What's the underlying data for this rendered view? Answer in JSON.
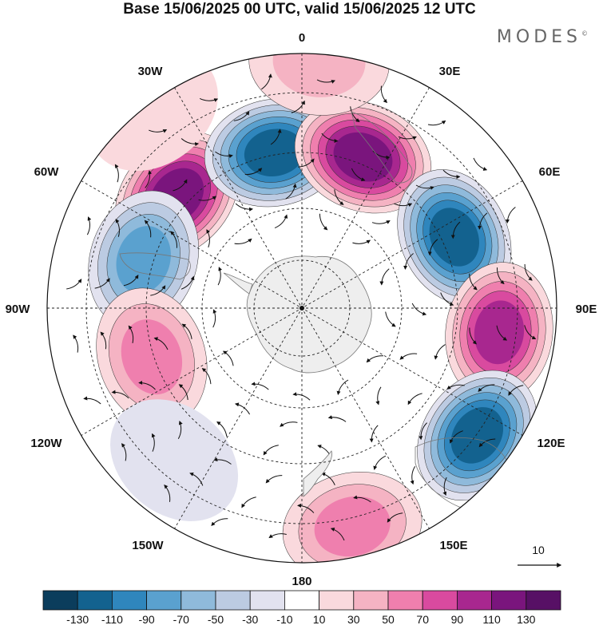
{
  "title": "Base 15/06/2025 00 UTC, valid 15/06/2025 12 UTC",
  "brand": "MODES",
  "brand_mark": "©",
  "longitude_labels": {
    "lon_0": "0",
    "lon_30e": "30E",
    "lon_60e": "60E",
    "lon_90e": "90E",
    "lon_120e": "120E",
    "lon_150e": "150E",
    "lon_180": "180",
    "lon_150w": "150W",
    "lon_120w": "120W",
    "lon_90w": "90W",
    "lon_60w": "60W",
    "lon_30w": "30W"
  },
  "vector_key": {
    "label": "10"
  },
  "colorbar": {
    "ticks": [
      "-130",
      "-110",
      "-90",
      "-70",
      "-50",
      "-30",
      "-10",
      "10",
      "30",
      "50",
      "70",
      "90",
      "110",
      "130"
    ],
    "colors": [
      "#0b3d5c",
      "#13628f",
      "#2f86bd",
      "#5aa1cf",
      "#8fbadb",
      "#bccbe2",
      "#e2e2ef",
      "#ffffff",
      "#fad9dd",
      "#f5b3c3",
      "#ef7fae",
      "#d94a9f",
      "#a8278f",
      "#7a157d",
      "#571065"
    ]
  },
  "map": {
    "projection": "south polar stereographic",
    "anomalies": [
      {
        "lon": -48,
        "lat_r": 0.66,
        "value": 130,
        "name": "anomaly-positive-1"
      },
      {
        "lon": -10,
        "lat_r": 0.62,
        "value": -130,
        "name": "anomaly-negative-1"
      },
      {
        "lon": 22,
        "lat_r": 0.64,
        "value": 130,
        "name": "anomaly-positive-2"
      },
      {
        "lon": 65,
        "lat_r": 0.66,
        "value": -120,
        "name": "anomaly-negative-2"
      },
      {
        "lon": 97,
        "lat_r": 0.78,
        "value": 110,
        "name": "anomaly-positive-3"
      },
      {
        "lon": 126,
        "lat_r": 0.85,
        "value": -130,
        "name": "anomaly-negative-3"
      },
      {
        "lon": 167,
        "lat_r": 0.88,
        "value": 70,
        "name": "anomaly-positive-4"
      },
      {
        "lon": -73,
        "lat_r": 0.65,
        "value": -90,
        "name": "anomaly-negative-4"
      },
      {
        "lon": -108,
        "lat_r": 0.62,
        "value": 70,
        "name": "anomaly-positive-5"
      },
      {
        "lon": -140,
        "lat_r": 0.78,
        "value": -30,
        "name": "anomaly-negative-5"
      },
      {
        "lon": 4,
        "lat_r": 0.97,
        "value": 50,
        "name": "anomaly-positive-6"
      },
      {
        "lon": -37,
        "lat_r": 0.97,
        "value": 30,
        "name": "anomaly-positive-7"
      }
    ]
  }
}
